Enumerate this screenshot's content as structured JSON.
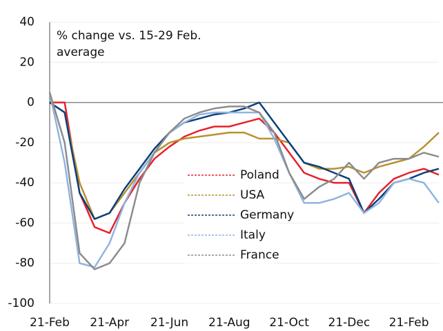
{
  "chart_data": {
    "type": "line",
    "annotation": [
      "% change vs. 15-29 Feb.",
      "average"
    ],
    "categories": [
      "21-Feb",
      null,
      null,
      null,
      "21-Apr",
      null,
      null,
      null,
      "21-Jun",
      null,
      null,
      null,
      "21-Aug",
      null,
      null,
      null,
      "21-Oct",
      null,
      null,
      null,
      "21-Dec",
      null,
      null,
      null,
      "21-Feb",
      null,
      null
    ],
    "series": [
      {
        "name": "Poland",
        "color": "#e8202a",
        "values": [
          0,
          0,
          -45,
          -62,
          -65,
          -50,
          -38,
          -28,
          -22,
          -17,
          -14,
          -12,
          -12,
          -10,
          -8,
          -15,
          -25,
          -35,
          -38,
          -40,
          -40,
          -55,
          -45,
          -38,
          -35,
          -33,
          -36
        ]
      },
      {
        "name": "USA",
        "color": "#b8912f",
        "values": [
          0,
          -5,
          -40,
          -58,
          -55,
          -45,
          -35,
          -25,
          -20,
          -18,
          -17,
          -16,
          -15,
          -15,
          -18,
          -18,
          -20,
          -30,
          -33,
          -33,
          -32,
          -35,
          -32,
          -30,
          -28,
          -22,
          -15
        ]
      },
      {
        "name": "Germany",
        "color": "#0b3f7a",
        "values": [
          0,
          -5,
          -45,
          -58,
          -55,
          -43,
          -33,
          -23,
          -15,
          -10,
          -8,
          -6,
          -5,
          -3,
          0,
          -10,
          -20,
          -30,
          -32,
          -35,
          -38,
          -55,
          -48,
          -40,
          -38,
          -35,
          -33
        ]
      },
      {
        "name": "Italy",
        "color": "#8fb4e0",
        "values": [
          5,
          -30,
          -80,
          -82,
          -70,
          -50,
          -35,
          -25,
          -15,
          -10,
          -6,
          -5,
          -5,
          -5,
          -5,
          -18,
          -35,
          -50,
          -50,
          -48,
          -45,
          -55,
          -50,
          -40,
          -38,
          -40,
          -50
        ]
      },
      {
        "name": "France",
        "color": "#8c8c8c",
        "values": [
          5,
          -20,
          -75,
          -83,
          -80,
          -70,
          -40,
          -25,
          -15,
          -8,
          -5,
          -3,
          -2,
          -2,
          -5,
          -15,
          -35,
          -48,
          -42,
          -38,
          -30,
          -38,
          -30,
          -28,
          -28,
          -25,
          -27
        ]
      }
    ],
    "ylim": [
      -100,
      40
    ],
    "yticks": [
      -100,
      -80,
      -60,
      -40,
      -20,
      0,
      20,
      40
    ],
    "grid": true,
    "legend": "center"
  }
}
